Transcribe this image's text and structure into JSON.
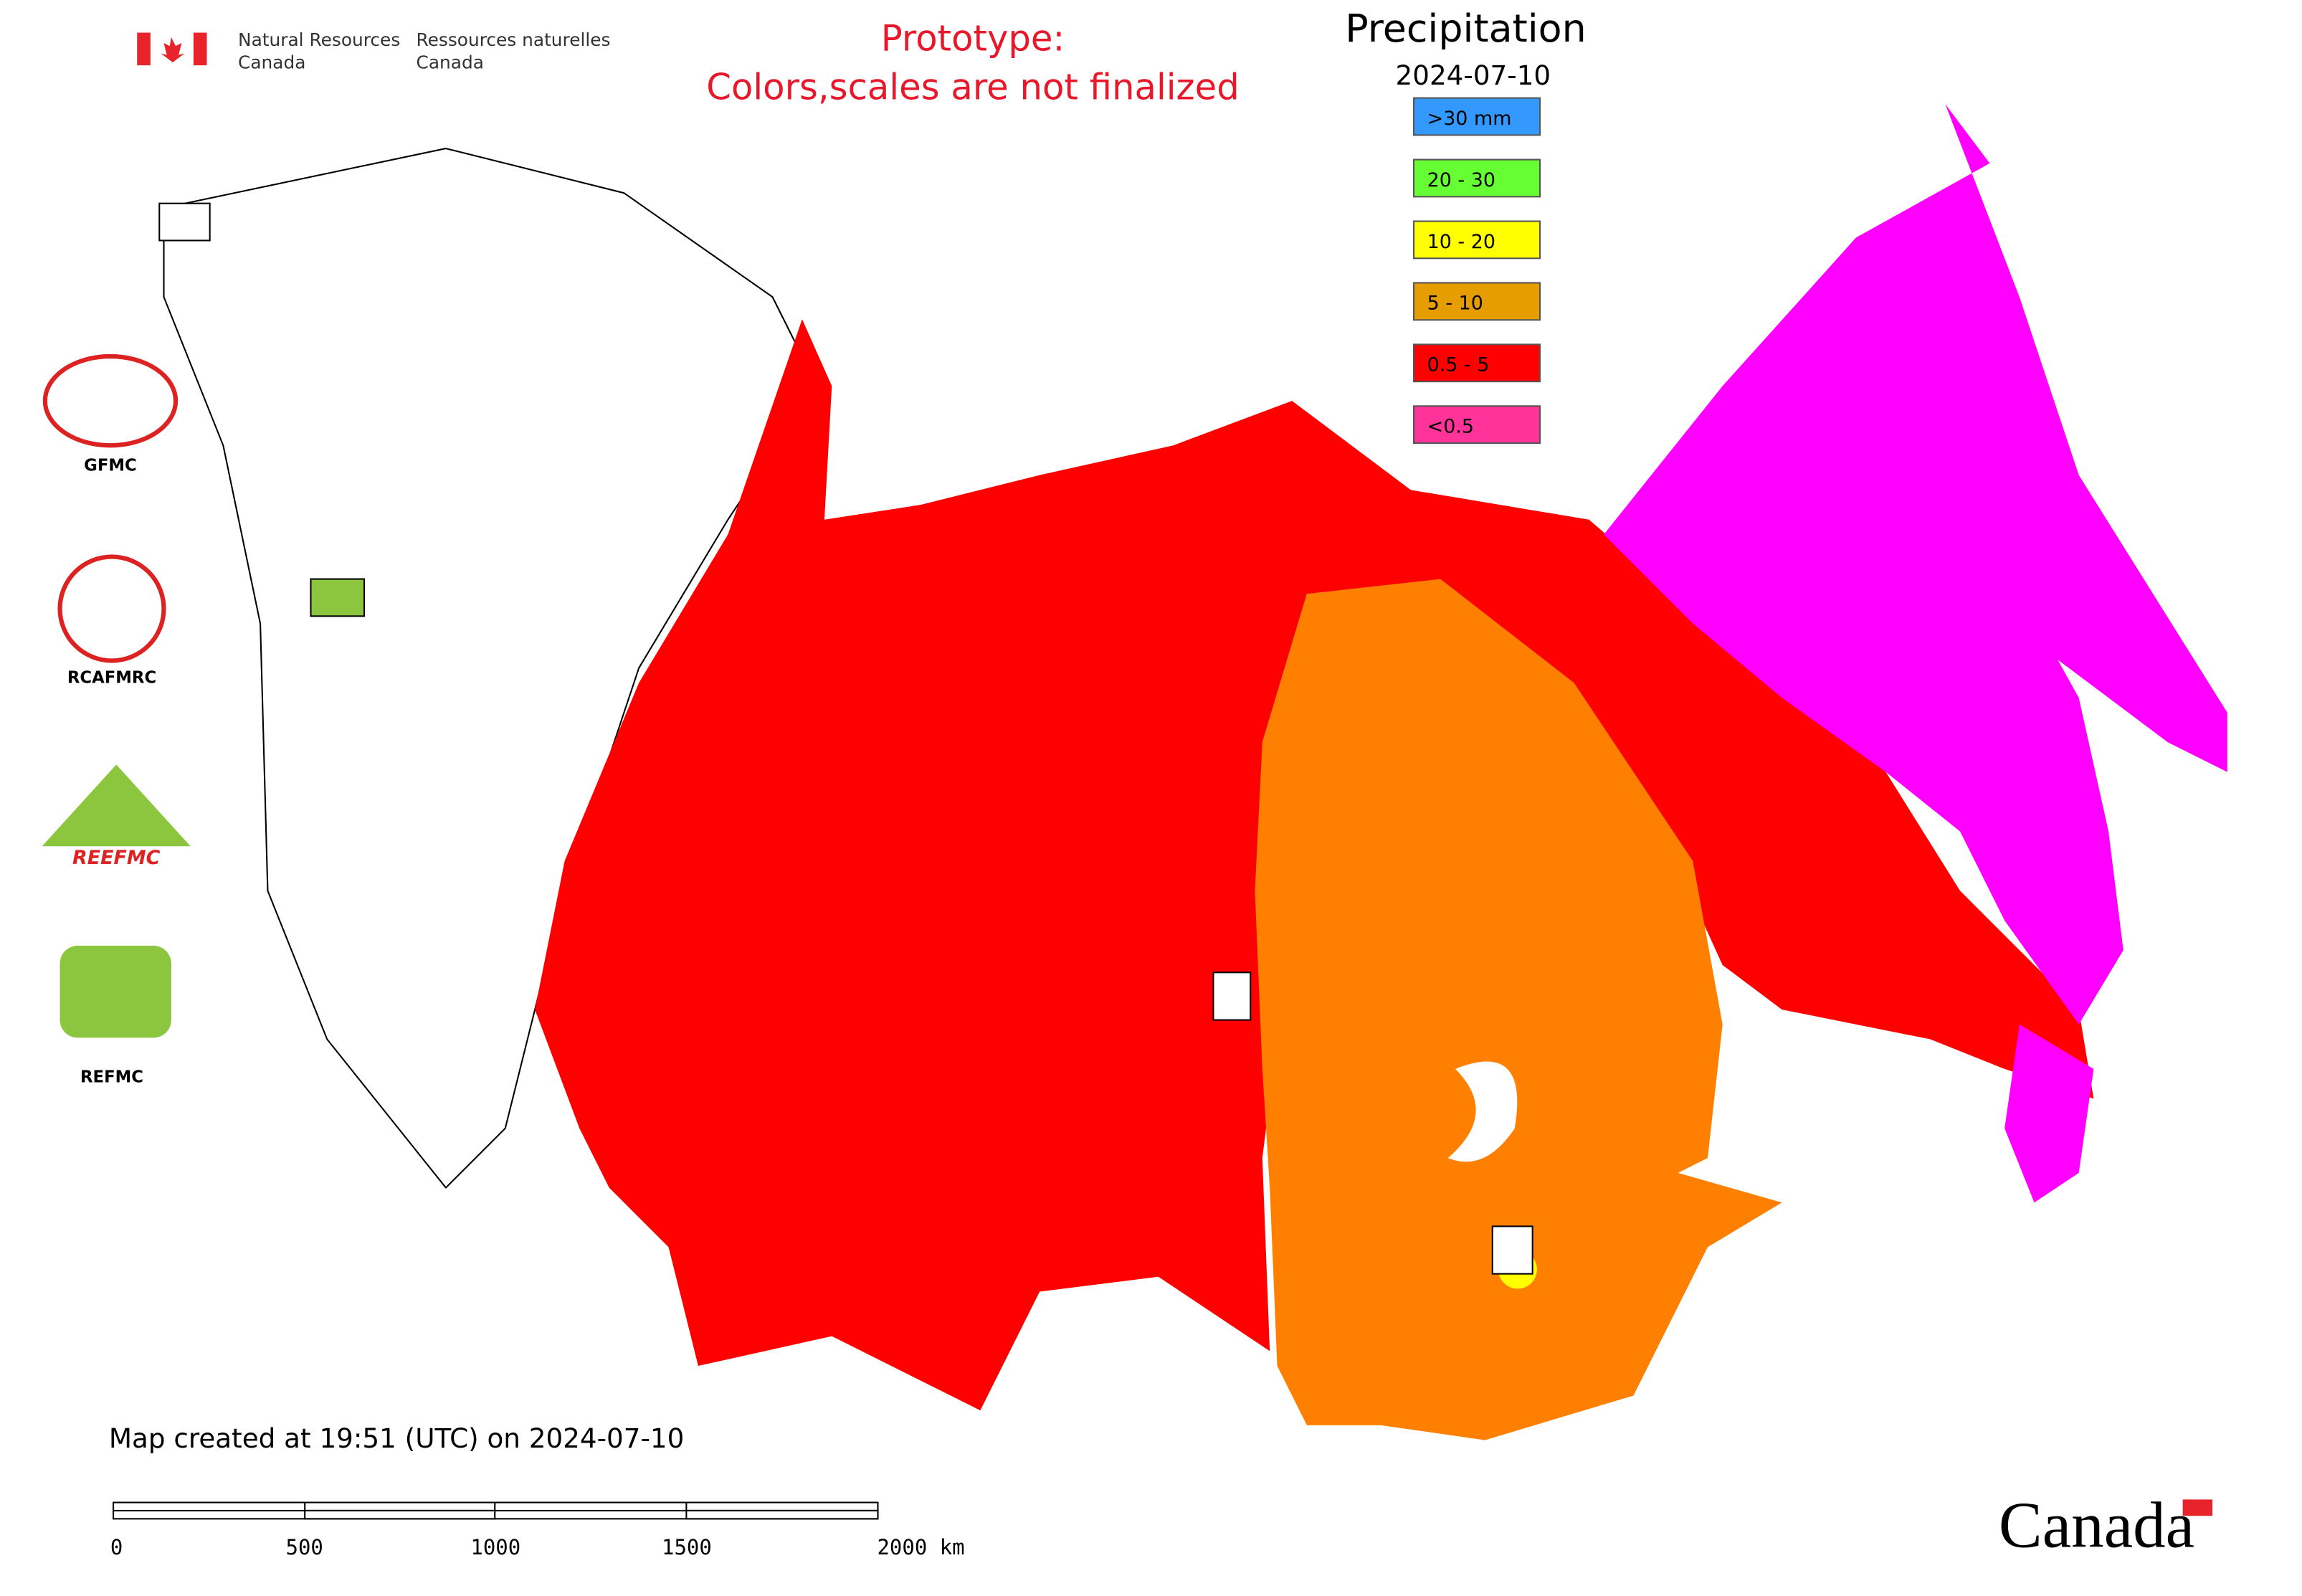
{
  "header": {
    "dept_en_1": "Natural Resources",
    "dept_en_2": "Canada",
    "dept_fr_1": "Ressources naturelles",
    "dept_fr_2": "Canada"
  },
  "notice": [
    "Prototype:",
    "Colors,scales are not finalized"
  ],
  "legend": {
    "title": "Precipitation",
    "date": "2024-07-10",
    "items": [
      {
        "label": ">30 mm",
        "color": "#3399ff"
      },
      {
        "label": "20 - 30",
        "color": "#66ff33"
      },
      {
        "label": "10 - 20",
        "color": "#ffff00"
      },
      {
        "label": "5 - 10",
        "color": "#e69d00"
      },
      {
        "label": "0.5 - 5",
        "color": "#ff0000"
      },
      {
        "label": "<0.5",
        "color": "#ff3399"
      }
    ]
  },
  "logos": [
    "GFMC",
    "RCAFMRC",
    "REEFMC",
    "REFMC"
  ],
  "footer": {
    "created": "Map created at 19:51 (UTC) on 2024-07-10",
    "scale_labels": [
      "0",
      "500",
      "1000",
      "1500",
      "2000 km"
    ]
  },
  "wordmark": "Canada"
}
